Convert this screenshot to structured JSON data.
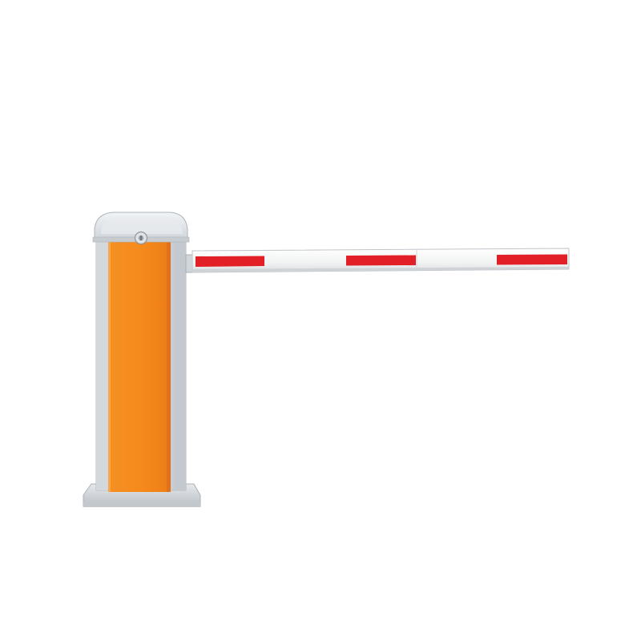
{
  "scene": {
    "subject": "parking-barrier-gate",
    "background_color": "#ffffff",
    "colors": {
      "cabinet_panel": "#f5891f",
      "cabinet_panel_shade": "#e6761a",
      "cabinet_frame": "#d9dee3",
      "cabinet_frame_shadow": "#b8bec5",
      "arm_white": "#f4f4f4",
      "arm_edge": "#c9cdd1",
      "reflective_stripe": "#e01f25"
    },
    "icons": {
      "lock": "lock-icon"
    },
    "arm": {
      "stripe_count": 3
    }
  }
}
